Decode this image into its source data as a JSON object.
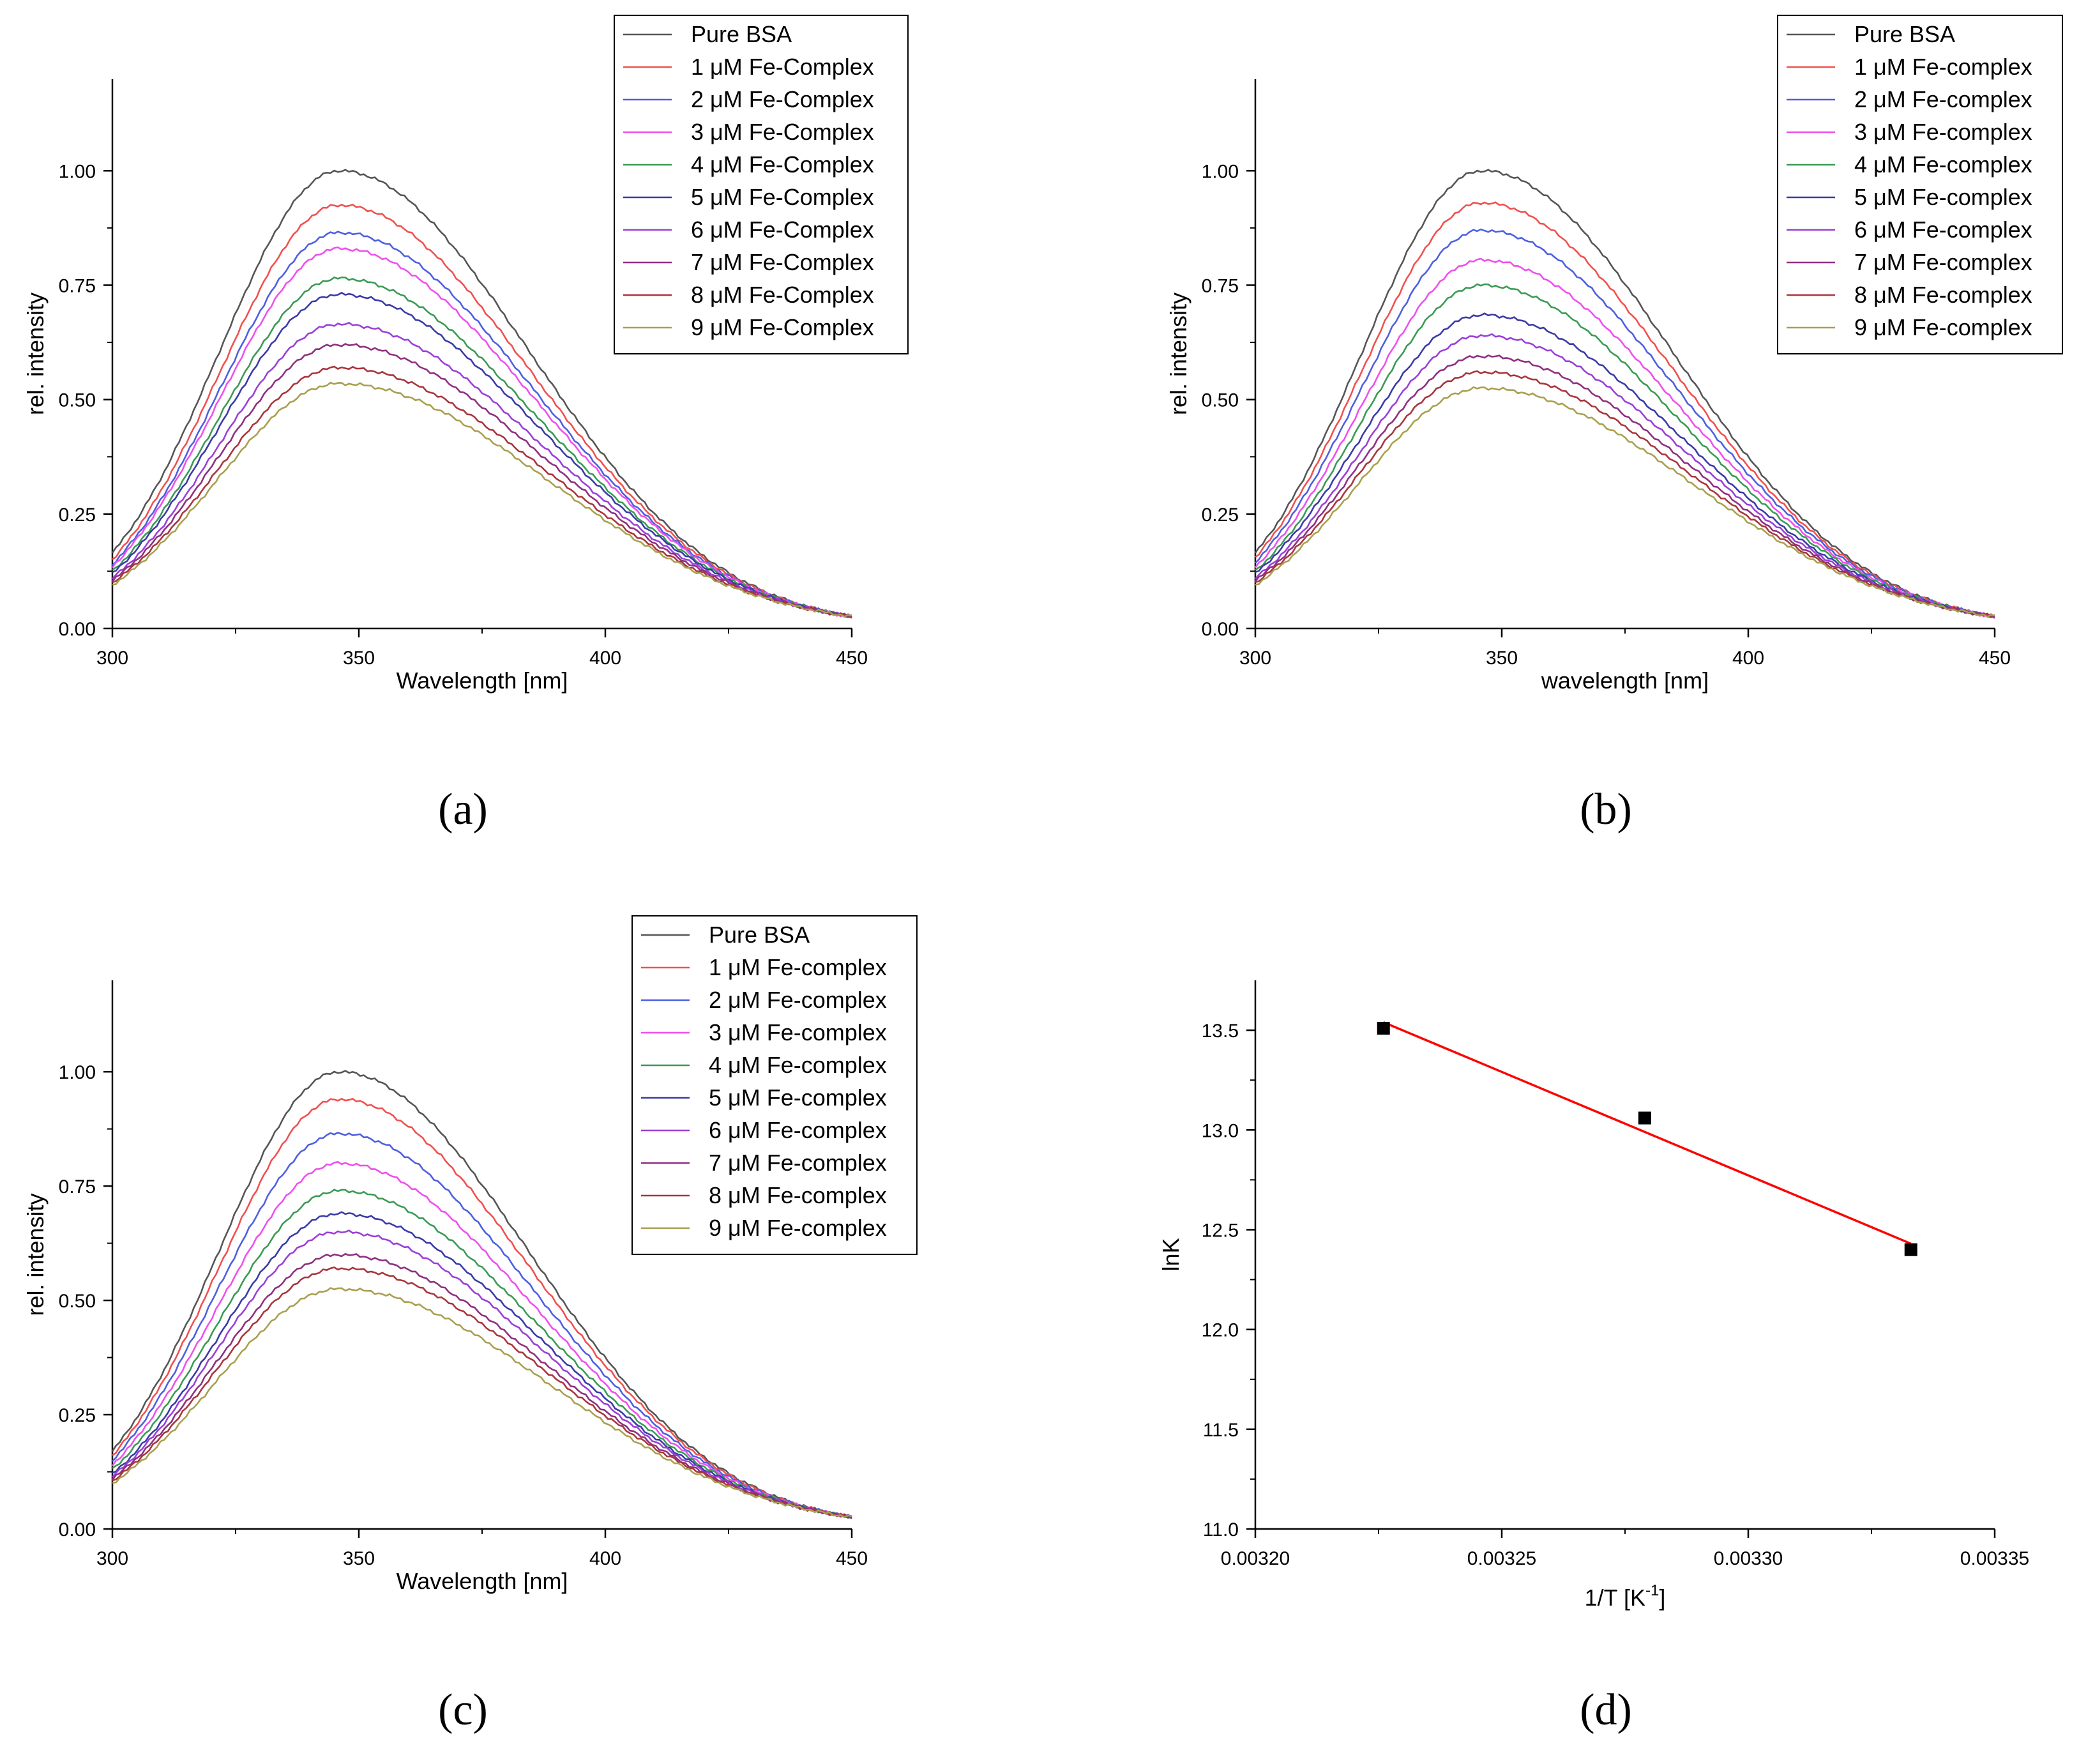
{
  "figure": {
    "panel_labels": [
      "(a)",
      "(b)",
      "(c)",
      "(d)"
    ]
  },
  "chart_data": [
    {
      "id": "a",
      "type": "line",
      "panel_label": "(a)",
      "xlabel": "Wavelength [nm]",
      "ylabel": "rel. intensity",
      "xlim": [
        300,
        450
      ],
      "ylim": [
        0,
        1.2
      ],
      "xticks": [
        300,
        350,
        400,
        450
      ],
      "xtick_labels": [
        "300",
        "350",
        "400",
        "450"
      ],
      "yticks": [
        0,
        0.25,
        0.5,
        0.75,
        1.0
      ],
      "ytick_labels": [
        "0.00",
        "0.25",
        "0.50",
        "0.75",
        "1.00"
      ],
      "legend_position": "top-right",
      "peak_wavelength": 346,
      "tail_value_450": 0.026,
      "series": [
        {
          "name": "Pure BSA",
          "peak": 1.0,
          "start_300": 0.165,
          "color": "#555555"
        },
        {
          "name": "1 μM Fe-Complex",
          "peak": 0.925,
          "start_300": 0.15,
          "color": "#f0504f"
        },
        {
          "name": "2 μM Fe-Complex",
          "peak": 0.865,
          "start_300": 0.14,
          "color": "#4d5fe0"
        },
        {
          "name": "3 μM Fe-Complex",
          "peak": 0.83,
          "start_300": 0.135,
          "color": "#ee4fee"
        },
        {
          "name": "4 μM Fe-Complex",
          "peak": 0.765,
          "start_300": 0.125,
          "color": "#3a9a54"
        },
        {
          "name": "5 μM Fe-Complex",
          "peak": 0.73,
          "start_300": 0.12,
          "color": "#3a3aa8"
        },
        {
          "name": "6 μM Fe-Complex",
          "peak": 0.665,
          "start_300": 0.11,
          "color": "#9a3fd8"
        },
        {
          "name": "7 μM Fe-Complex",
          "peak": 0.62,
          "start_300": 0.105,
          "color": "#8e2f7f"
        },
        {
          "name": "8 μM Fe-Complex",
          "peak": 0.57,
          "start_300": 0.1,
          "color": "#a8353d"
        },
        {
          "name": "9 μM Fe-Complex",
          "peak": 0.535,
          "start_300": 0.095,
          "color": "#a8a04e"
        }
      ]
    },
    {
      "id": "b",
      "type": "line",
      "panel_label": "(b)",
      "xlabel": "wavelength [nm]",
      "ylabel": "rel. intensity",
      "xlim": [
        300,
        450
      ],
      "ylim": [
        0,
        1.2
      ],
      "xticks": [
        300,
        350,
        400,
        450
      ],
      "xtick_labels": [
        "300",
        "350",
        "400",
        "450"
      ],
      "yticks": [
        0,
        0.25,
        0.5,
        0.75,
        1.0
      ],
      "ytick_labels": [
        "0.00",
        "0.25",
        "0.50",
        "0.75",
        "1.00"
      ],
      "legend_position": "top-right",
      "peak_wavelength": 346,
      "tail_value_450": 0.026,
      "series": [
        {
          "name": "Pure BSA",
          "peak": 1.0,
          "start_300": 0.165,
          "color": "#555555"
        },
        {
          "name": "1 μM Fe-complex",
          "peak": 0.93,
          "start_300": 0.155,
          "color": "#f0504f"
        },
        {
          "name": "2 μM Fe-complex",
          "peak": 0.87,
          "start_300": 0.145,
          "color": "#4d5fe0"
        },
        {
          "name": "3 μM Fe-complex",
          "peak": 0.805,
          "start_300": 0.135,
          "color": "#ee4fee"
        },
        {
          "name": "4 μM Fe-complex",
          "peak": 0.75,
          "start_300": 0.125,
          "color": "#3a9a54"
        },
        {
          "name": "5 μM Fe-complex",
          "peak": 0.685,
          "start_300": 0.12,
          "color": "#3a3aa8"
        },
        {
          "name": "6 μM Fe-complex",
          "peak": 0.64,
          "start_300": 0.11,
          "color": "#9a3fd8"
        },
        {
          "name": "7 μM Fe-complex",
          "peak": 0.595,
          "start_300": 0.105,
          "color": "#8e2f7f"
        },
        {
          "name": "8 μM Fe-complex",
          "peak": 0.56,
          "start_300": 0.1,
          "color": "#a8353d"
        },
        {
          "name": "9 μM Fe-complex",
          "peak": 0.525,
          "start_300": 0.095,
          "color": "#a8a04e"
        }
      ]
    },
    {
      "id": "c",
      "type": "line",
      "panel_label": "(c)",
      "xlabel": "Wavelength [nm]",
      "ylabel": "rel. intensity",
      "xlim": [
        300,
        450
      ],
      "ylim": [
        0,
        1.2
      ],
      "xticks": [
        300,
        350,
        400,
        450
      ],
      "xtick_labels": [
        "300",
        "350",
        "400",
        "450"
      ],
      "yticks": [
        0,
        0.25,
        0.5,
        0.75,
        1.0
      ],
      "ytick_labels": [
        "0.00",
        "0.25",
        "0.50",
        "0.75",
        "1.00"
      ],
      "legend_position": "top-right",
      "peak_wavelength": 346,
      "tail_value_450": 0.026,
      "series": [
        {
          "name": "Pure BSA",
          "peak": 1.0,
          "start_300": 0.17,
          "color": "#555555"
        },
        {
          "name": "1 μM Fe-complex",
          "peak": 0.94,
          "start_300": 0.16,
          "color": "#f0504f"
        },
        {
          "name": "2 μM Fe-complex",
          "peak": 0.865,
          "start_300": 0.15,
          "color": "#4d5fe0"
        },
        {
          "name": "3 μM Fe-complex",
          "peak": 0.8,
          "start_300": 0.14,
          "color": "#ee4fee"
        },
        {
          "name": "4 μM Fe-complex",
          "peak": 0.74,
          "start_300": 0.13,
          "color": "#3a9a54"
        },
        {
          "name": "5 μM Fe-complex",
          "peak": 0.69,
          "start_300": 0.12,
          "color": "#3a3aa8"
        },
        {
          "name": "6 μM Fe-complex",
          "peak": 0.65,
          "start_300": 0.115,
          "color": "#9a3fd8"
        },
        {
          "name": "7 μM Fe-complex",
          "peak": 0.6,
          "start_300": 0.11,
          "color": "#8e2f7f"
        },
        {
          "name": "8 μM Fe-complex",
          "peak": 0.57,
          "start_300": 0.105,
          "color": "#a8353d"
        },
        {
          "name": "9 μM Fe-complex",
          "peak": 0.525,
          "start_300": 0.1,
          "color": "#a8a04e"
        }
      ]
    },
    {
      "id": "d",
      "type": "scatter",
      "panel_label": "(d)",
      "xlabel": "1/T [K",
      "xlabel_superscript": "-1",
      "xlabel_suffix": "]",
      "ylabel": "lnK",
      "xlim": [
        0.0032,
        0.00335
      ],
      "ylim": [
        11.0,
        13.75
      ],
      "xticks": [
        0.0032,
        0.00325,
        0.0033,
        0.00335
      ],
      "xtick_labels": [
        "0.00320",
        "0.00325",
        "0.00330",
        "0.00335"
      ],
      "yticks": [
        11.0,
        11.5,
        12.0,
        12.5,
        13.0,
        13.5
      ],
      "ytick_labels": [
        "11.0",
        "11.5",
        "12.0",
        "12.5",
        "13.0",
        "13.5"
      ],
      "points": [
        {
          "x": 0.003226,
          "y": 13.51
        },
        {
          "x": 0.003279,
          "y": 13.06
        },
        {
          "x": 0.003333,
          "y": 12.4
        }
      ],
      "point_color": "#000000",
      "fit": {
        "x": [
          0.003226,
          0.003333
        ],
        "y": [
          13.54,
          12.43
        ],
        "color": "#ff0000"
      }
    }
  ]
}
